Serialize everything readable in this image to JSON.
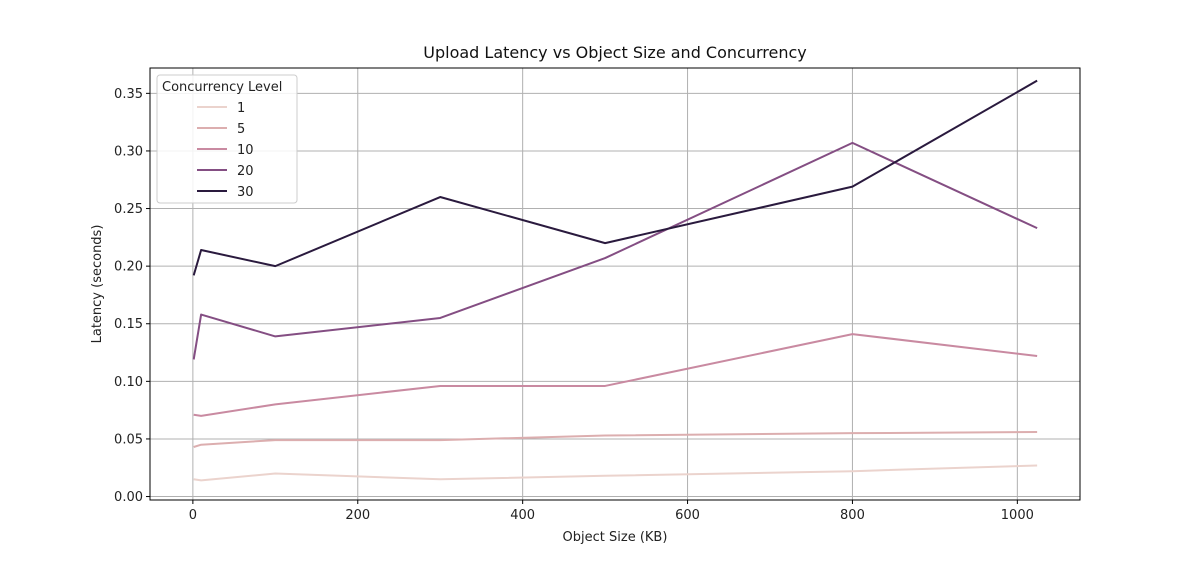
{
  "chart_data": {
    "type": "line",
    "title": "Upload Latency vs Object Size and Concurrency",
    "xlabel": "Object Size (KB)",
    "ylabel": "Latency (seconds)",
    "xlim": [
      -52,
      1076
    ],
    "ylim": [
      -0.003,
      0.372
    ],
    "xticks": [
      0,
      200,
      400,
      600,
      800,
      1000
    ],
    "yticks": [
      0.0,
      0.05,
      0.1,
      0.15,
      0.2,
      0.25,
      0.3,
      0.35
    ],
    "ytick_labels": [
      "0.00",
      "0.05",
      "0.10",
      "0.15",
      "0.20",
      "0.25",
      "0.30",
      "0.35"
    ],
    "grid": true,
    "legend": {
      "title": "Concurrency Level",
      "placement": "top-left"
    },
    "x": [
      1,
      10,
      100,
      300,
      500,
      800,
      1024
    ],
    "series": [
      {
        "name": "1",
        "color": "#ebd3cd",
        "values": [
          0.015,
          0.014,
          0.02,
          0.015,
          0.018,
          0.022,
          0.027
        ]
      },
      {
        "name": "5",
        "color": "#dcaeaf",
        "values": [
          0.043,
          0.045,
          0.049,
          0.049,
          0.053,
          0.055,
          0.056
        ]
      },
      {
        "name": "10",
        "color": "#c98aa1",
        "values": [
          0.071,
          0.07,
          0.08,
          0.096,
          0.096,
          0.141,
          0.122
        ]
      },
      {
        "name": "20",
        "color": "#844e83",
        "values": [
          0.119,
          0.158,
          0.139,
          0.155,
          0.207,
          0.307,
          0.233
        ]
      },
      {
        "name": "30",
        "color": "#2a1a3e",
        "values": [
          0.192,
          0.214,
          0.2,
          0.26,
          0.22,
          0.269,
          0.361
        ]
      }
    ]
  }
}
